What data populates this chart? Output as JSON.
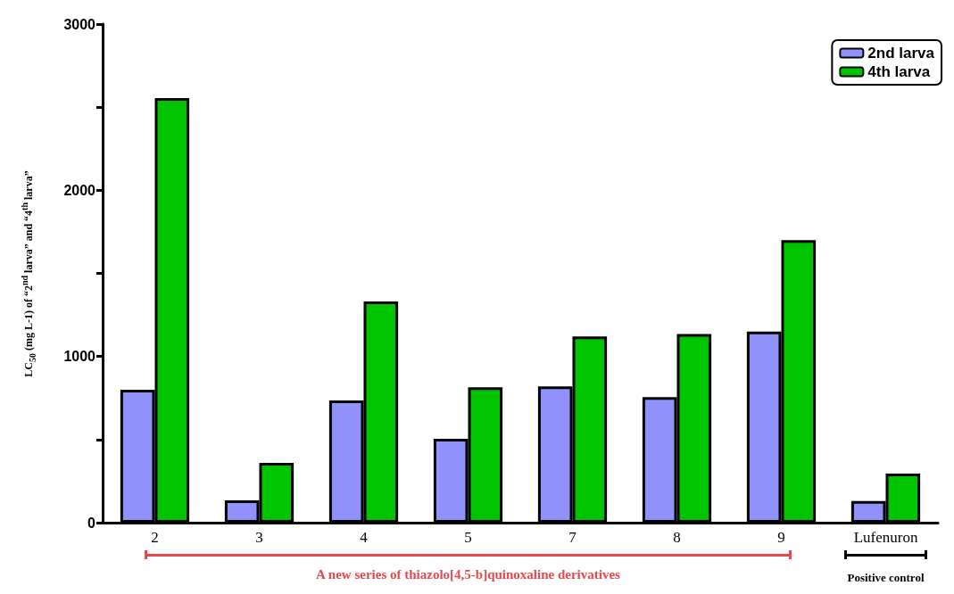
{
  "chart_data": {
    "type": "bar",
    "ylabel": "LC$_{50}$ (mg L-1) of “2$^{nd}$ larva” and “4$^{th}$ larva”",
    "categories": [
      "2",
      "3",
      "4",
      "5",
      "7",
      "8",
      "9",
      "Lufenuron"
    ],
    "series": [
      {
        "name": "2nd larva",
        "color": "#9191fb",
        "values": [
          800,
          134,
          735,
          505,
          820,
          755,
          1150,
          130
        ]
      },
      {
        "name": "4th larva",
        "color": "#00c400",
        "values": [
          2555,
          360,
          1331,
          815,
          1120,
          1135,
          1700,
          295
        ]
      }
    ],
    "ylim": [
      0,
      3000
    ],
    "yticks": [
      0,
      {
        "value": 500,
        "label": null
      },
      1000,
      {
        "value": 1500,
        "label": null
      },
      2000,
      {
        "value": 2500,
        "label": null
      },
      3000
    ],
    "grid": false,
    "legend": "top right",
    "annotations": [
      "A new series of thiazolo[4,5-b]quinoxaline derivatives",
      "Positive control"
    ]
  }
}
